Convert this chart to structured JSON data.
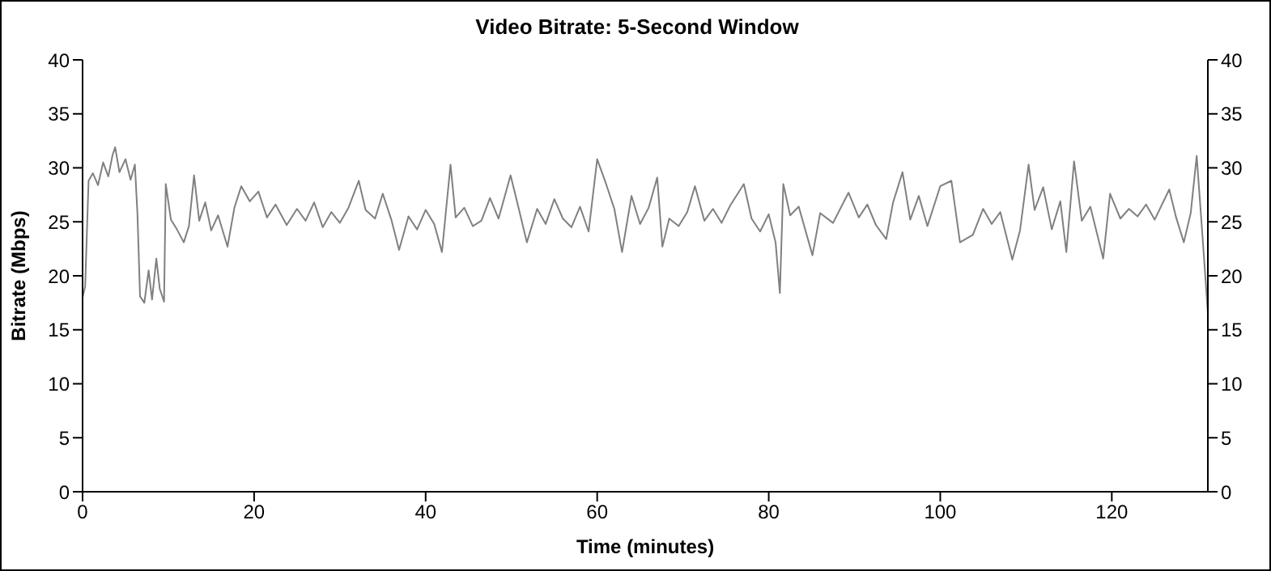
{
  "chart_data": {
    "type": "line",
    "title": "Video Bitrate: 5-Second Window",
    "xlabel": "Time (minutes)",
    "ylabel": "Bitrate (Mbps)",
    "x": [
      0,
      0.3,
      0.7,
      1.2,
      1.8,
      2.4,
      3.0,
      3.5,
      3.8,
      4.3,
      5.0,
      5.6,
      6.1,
      6.4,
      6.7,
      7.2,
      7.7,
      8.1,
      8.6,
      9.0,
      9.5,
      9.7,
      10.3,
      11.0,
      11.8,
      12.4,
      13.0,
      13.6,
      14.3,
      15.0,
      15.8,
      16.9,
      17.7,
      18.5,
      19.5,
      20.5,
      21.5,
      22.5,
      23.8,
      25,
      26,
      27,
      28,
      29,
      30,
      31,
      32.2,
      33,
      34.1,
      35,
      36,
      36.9,
      38,
      39,
      40,
      41,
      41.9,
      42.9,
      43.5,
      44.5,
      45.5,
      46.5,
      47.5,
      48.5,
      49.9,
      50.8,
      51.8,
      53,
      54,
      55,
      56,
      57,
      58,
      59,
      60,
      61,
      62,
      62.9,
      64,
      65,
      66,
      67,
      67.6,
      68.4,
      69.5,
      70.5,
      71.4,
      72.5,
      73.5,
      74.5,
      75.5,
      77.1,
      78,
      79,
      80,
      80.8,
      81.3,
      81.7,
      82.5,
      83.5,
      85.1,
      86,
      87.5,
      89.3,
      90.5,
      91.5,
      92.5,
      93.7,
      94.5,
      95.6,
      96.5,
      97.5,
      98.5,
      100,
      101.3,
      102.3,
      103.8,
      105,
      106,
      107,
      108.4,
      109.3,
      110.3,
      111,
      112,
      113,
      114,
      114.7,
      115.6,
      116.5,
      117.5,
      119,
      119.8,
      121,
      122,
      123,
      124,
      125,
      126.7,
      127.5,
      128.4,
      129.2,
      129.9,
      130.5,
      131.2
    ],
    "series": [
      {
        "color": "#808080",
        "values": [
          18,
          19,
          28.8,
          29.5,
          28.4,
          30.5,
          29.2,
          31.2,
          31.9,
          29.6,
          30.8,
          28.9,
          30.3,
          25.7,
          18.1,
          17.5,
          20.5,
          17.8,
          21.6,
          18.8,
          17.6,
          28.5,
          25.2,
          24.3,
          23.1,
          24.6,
          29.3,
          25.1,
          26.8,
          24.2,
          25.6,
          22.7,
          26.3,
          28.3,
          26.9,
          27.8,
          25.4,
          26.6,
          24.7,
          26.2,
          25.1,
          26.8,
          24.5,
          25.9,
          24.9,
          26.3,
          28.8,
          26.1,
          25.3,
          27.6,
          25.2,
          22.4,
          25.5,
          24.3,
          26.1,
          24.8,
          22.2,
          30.3,
          25.4,
          26.3,
          24.6,
          25.1,
          27.2,
          25.3,
          29.3,
          26.4,
          23.1,
          26.2,
          24.8,
          27.1,
          25.3,
          24.5,
          26.4,
          24.1,
          30.8,
          28.6,
          26.2,
          22.2,
          27.4,
          24.8,
          26.3,
          29.1,
          22.7,
          25.3,
          24.6,
          25.9,
          28.3,
          25.1,
          26.2,
          24.9,
          26.5,
          28.5,
          25.3,
          24.1,
          25.7,
          23.1,
          18.4,
          28.5,
          25.6,
          26.4,
          21.9,
          25.8,
          24.9,
          27.7,
          25.4,
          26.6,
          24.7,
          23.4,
          26.8,
          29.6,
          25.2,
          27.4,
          24.6,
          28.3,
          28.8,
          23.1,
          23.8,
          26.2,
          24.8,
          25.9,
          21.5,
          24.2,
          30.3,
          26.1,
          28.2,
          24.3,
          26.9,
          22.2,
          30.6,
          25.1,
          26.4,
          21.6,
          27.6,
          25.3,
          26.2,
          25.5,
          26.6,
          25.2,
          28,
          25.4,
          23.1,
          25.8,
          31.1,
          24.5,
          16.6
        ]
      }
    ],
    "xlim": [
      0,
      131.2
    ],
    "xticks": [
      0,
      20,
      40,
      60,
      80,
      100,
      120
    ],
    "ylim": [
      0,
      40
    ],
    "yticks": [
      0,
      5,
      10,
      15,
      20,
      25,
      30,
      35,
      40
    ],
    "y2lim": [
      0,
      40
    ],
    "y2ticks": [
      0,
      5,
      10,
      15,
      20,
      25,
      30,
      35,
      40
    ],
    "grid": false,
    "legend": false,
    "marker": "none",
    "line_style": "solid"
  }
}
